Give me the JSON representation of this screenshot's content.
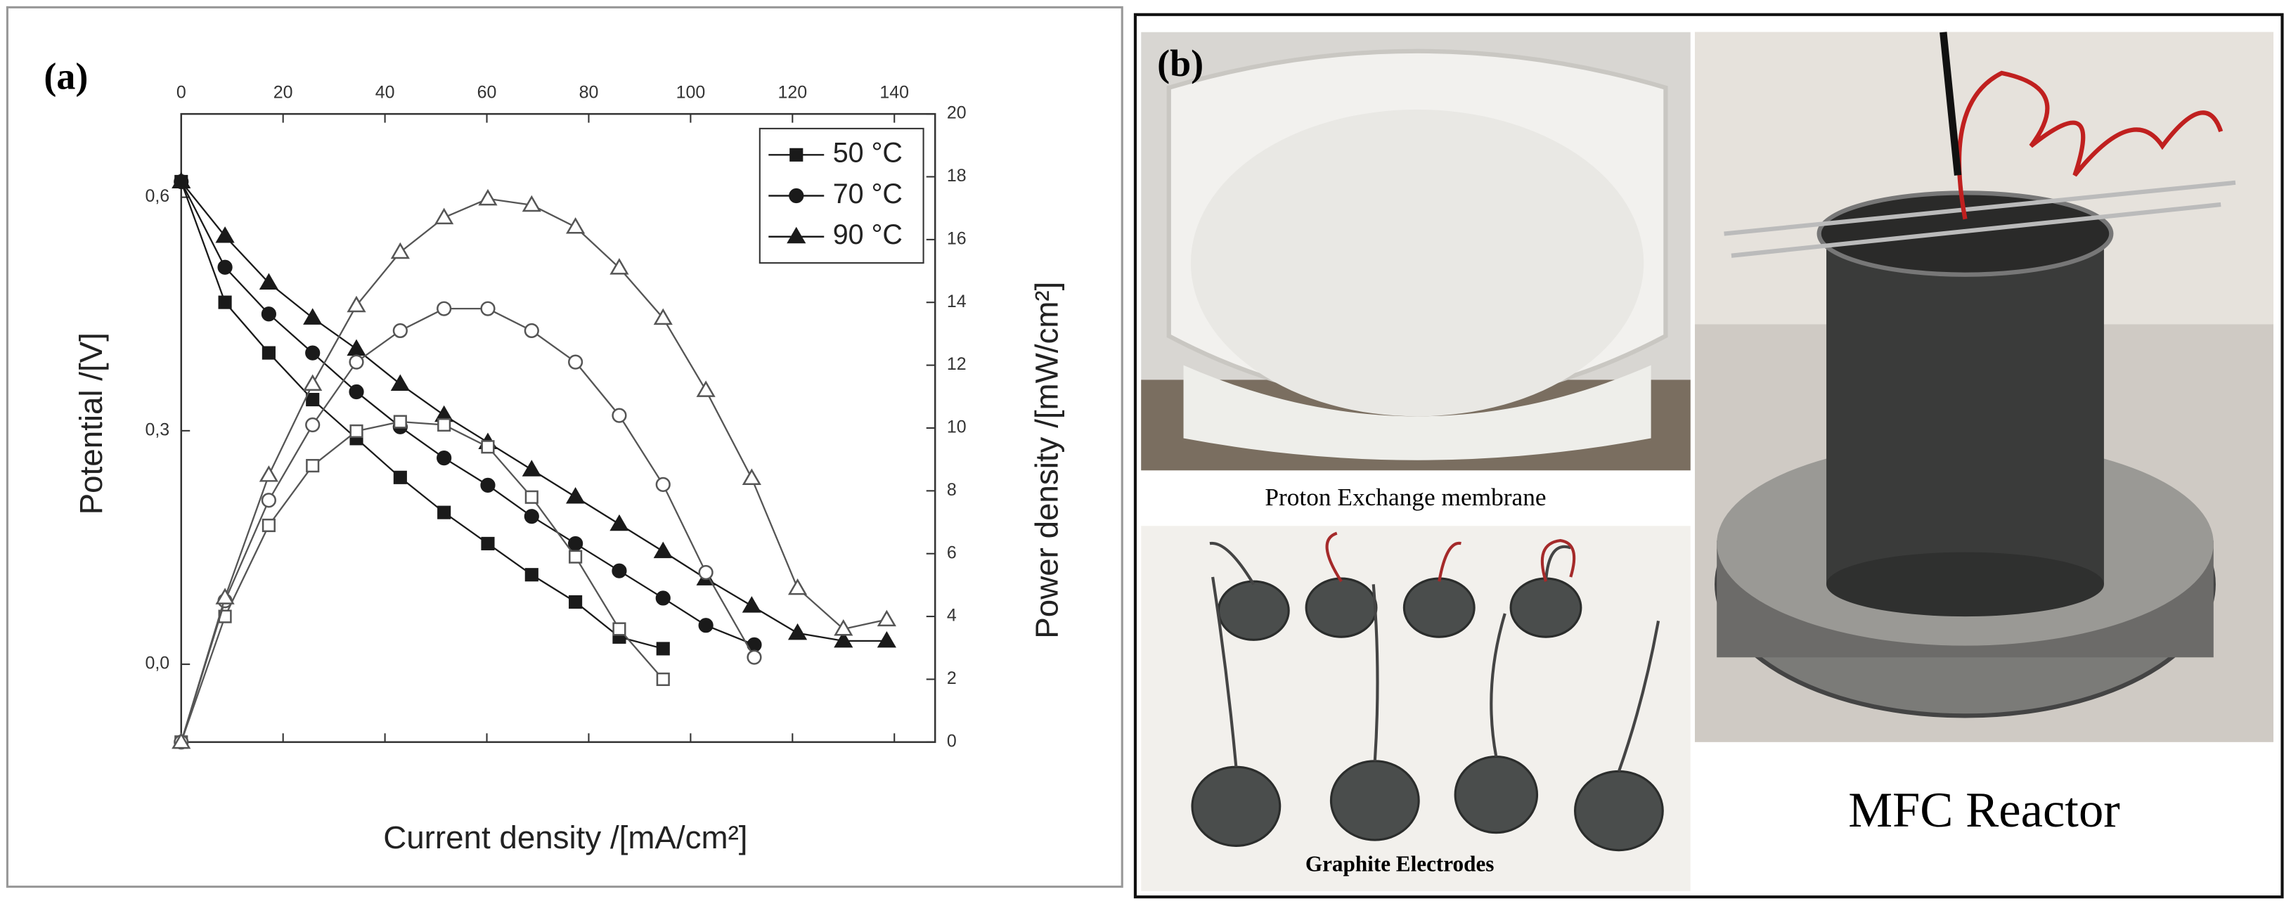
{
  "chart_data": {
    "type": "line",
    "label": "(a)",
    "x_label": "Current density /[mA/cm²]",
    "y_label": "Potential /[V]",
    "y2_label": "Power density /[mW/cm²]",
    "xlim": [
      0,
      148
    ],
    "xticks": [
      0,
      20,
      40,
      60,
      80,
      100,
      120,
      140
    ],
    "ylim": [
      -0.1,
      0.707
    ],
    "yticks": [
      {
        "value": 0,
        "label": "0,0"
      },
      {
        "value": 0.3,
        "label": "0,3"
      },
      {
        "value": 0.6,
        "label": "0,6"
      }
    ],
    "y2lim": [
      0,
      20
    ],
    "y2ticks": [
      0,
      2,
      4,
      6,
      8,
      10,
      12,
      14,
      16,
      18,
      20
    ],
    "legend": "upper right",
    "grid": false,
    "series": [
      {
        "name": "50 °C",
        "color": "#1a1a1a",
        "marker": "square",
        "filled": true,
        "x": [
          0,
          8.6,
          17.2,
          25.8,
          34.4,
          43,
          51.6,
          60.2,
          68.8,
          77.4,
          86,
          94.6
        ],
        "values": [
          0.62,
          0.465,
          0.4,
          0.34,
          0.29,
          0.24,
          0.195,
          0.155,
          0.115,
          0.08,
          0.035,
          0.02
        ]
      },
      {
        "name": "70 °C",
        "color": "#1a1a1a",
        "marker": "circle",
        "filled": true,
        "x": [
          0,
          8.6,
          17.2,
          25.8,
          34.4,
          43,
          51.6,
          60.2,
          68.8,
          77.4,
          86,
          94.6,
          103,
          112.5
        ],
        "values": [
          0.62,
          0.51,
          0.45,
          0.4,
          0.35,
          0.305,
          0.265,
          0.23,
          0.19,
          0.155,
          0.12,
          0.085,
          0.05,
          0.025
        ]
      },
      {
        "name": "90 °C",
        "color": "#1a1a1a",
        "marker": "triangle",
        "filled": true,
        "x": [
          0,
          8.6,
          17.2,
          25.8,
          34.4,
          43,
          51.6,
          60.2,
          68.8,
          77.4,
          86,
          94.6,
          103,
          112,
          121,
          130,
          138.5
        ],
        "values": [
          0.62,
          0.55,
          0.49,
          0.445,
          0.405,
          0.36,
          0.32,
          0.285,
          0.25,
          0.215,
          0.18,
          0.145,
          0.11,
          0.075,
          0.04,
          0.03,
          0.03
        ]
      },
      {
        "color": "#555555",
        "marker": "square",
        "filled": false,
        "axis": "y2",
        "x": [
          0,
          8.6,
          17.2,
          25.8,
          34.4,
          43,
          51.6,
          60.2,
          68.8,
          77.4,
          86,
          94.6
        ],
        "values": [
          0,
          4.0,
          6.9,
          8.8,
          9.9,
          10.2,
          10.1,
          9.4,
          7.8,
          5.9,
          3.6,
          2.0
        ]
      },
      {
        "color": "#555555",
        "marker": "circle",
        "filled": false,
        "axis": "y2",
        "x": [
          0,
          8.6,
          17.2,
          25.8,
          34.4,
          43,
          51.6,
          60.2,
          68.8,
          77.4,
          86,
          94.6,
          103,
          112.5
        ],
        "values": [
          0,
          4.5,
          7.7,
          10.1,
          12.1,
          13.1,
          13.8,
          13.8,
          13.1,
          12.1,
          10.4,
          8.2,
          5.4,
          2.7
        ]
      },
      {
        "color": "#555555",
        "marker": "triangle",
        "filled": false,
        "axis": "y2",
        "x": [
          0,
          8.6,
          17.2,
          25.8,
          34.4,
          43,
          51.6,
          60.2,
          68.8,
          77.4,
          86,
          94.6,
          103,
          112,
          121,
          130,
          138.5
        ],
        "values": [
          0,
          4.6,
          8.5,
          11.4,
          13.9,
          15.6,
          16.7,
          17.3,
          17.1,
          16.4,
          15.1,
          13.5,
          11.2,
          8.4,
          4.9,
          3.6,
          3.9
        ]
      }
    ]
  },
  "panel_b": {
    "label": "(b)",
    "captions": [
      "Proton Exchange membrane",
      "Graphite Electrodes",
      "MFC Reactor"
    ]
  }
}
